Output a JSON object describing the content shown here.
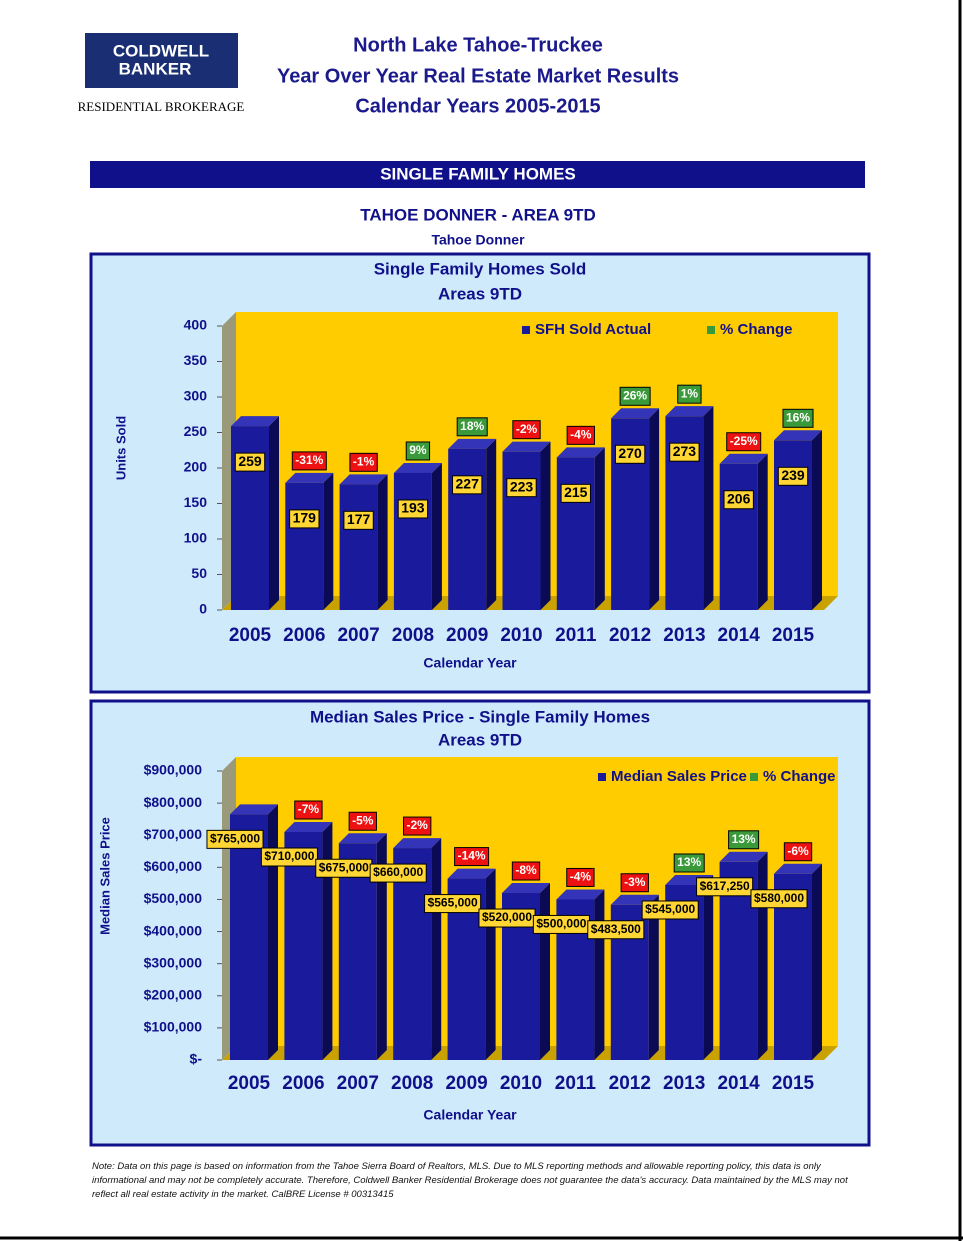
{
  "header": {
    "logo_line1": "COLDWELL",
    "logo_line2": "BANKER",
    "logo_sub": "RESIDENTIAL BROKERAGE",
    "title_lines": [
      "North Lake Tahoe-Truckee",
      "Year Over Year Real Estate Market Results",
      "Calendar Years 2005-2015"
    ]
  },
  "section": "SINGLE FAMILY HOMES",
  "area_title": "TAHOE DONNER - AREA 9TD",
  "area_subtitle": "Tahoe Donner",
  "chart_data": [
    {
      "type": "bar",
      "title": "Single Family Homes Sold",
      "subtitle": "Areas 9TD",
      "xlabel": "Calendar Year",
      "ylabel": "Units Sold",
      "categories": [
        "2005",
        "2006",
        "2007",
        "2008",
        "2009",
        "2010",
        "2011",
        "2012",
        "2013",
        "2014",
        "2015"
      ],
      "series": [
        {
          "name": "SFH Sold Actual",
          "color": "#1a1a9c",
          "values": [
            259,
            179,
            177,
            193,
            227,
            223,
            215,
            270,
            273,
            206,
            239
          ]
        },
        {
          "name": "% Change",
          "color": "#3a9a3a",
          "negative_color": "#ee1111",
          "values": [
            null,
            -31,
            -1,
            9,
            18,
            -2,
            -4,
            26,
            1,
            -25,
            16
          ],
          "value_labels": [
            null,
            "-31%",
            "-1%",
            "9%",
            "18%",
            "-2%",
            "-4%",
            "26%",
            "1%",
            "-25%",
            "16%"
          ]
        }
      ],
      "ylim": [
        0,
        400
      ],
      "yticks": [
        0,
        50,
        100,
        150,
        200,
        250,
        300,
        350,
        400
      ]
    },
    {
      "type": "bar",
      "title": "Median Sales Price - Single Family Homes",
      "subtitle": "Areas 9TD",
      "xlabel": "Calendar Year",
      "ylabel": "Median Sales Price",
      "categories": [
        "2005",
        "2006",
        "2007",
        "2008",
        "2009",
        "2010",
        "2011",
        "2012",
        "2013",
        "2014",
        "2015"
      ],
      "series": [
        {
          "name": "Median Sales Price",
          "color": "#1a1a9c",
          "values": [
            765000,
            710000,
            675000,
            660000,
            565000,
            520000,
            500000,
            483500,
            545000,
            617250,
            580000
          ],
          "value_labels": [
            "$765,000",
            "$710,000",
            "$675,000",
            "$660,000",
            "$565,000",
            "$520,000",
            "$500,000",
            "$483,500",
            "$545,000",
            "$617,250",
            "$580,000"
          ]
        },
        {
          "name": "% Change",
          "color": "#3a9a3a",
          "negative_color": "#ee1111",
          "values": [
            null,
            -7,
            -5,
            -2,
            -14,
            -8,
            -4,
            -3,
            13,
            13,
            -6
          ],
          "value_labels": [
            null,
            "-7%",
            "-5%",
            "-2%",
            "-14%",
            "-8%",
            "-4%",
            "-3%",
            "13%",
            "13%",
            "-6%"
          ]
        }
      ],
      "ylim": [
        0,
        900000
      ],
      "yticks": [
        {
          "value": 0,
          "label": "$-"
        },
        {
          "value": 100000,
          "label": "$100,000"
        },
        {
          "value": 200000,
          "label": "$200,000"
        },
        {
          "value": 300000,
          "label": "$300,000"
        },
        {
          "value": 400000,
          "label": "$400,000"
        },
        {
          "value": 500000,
          "label": "$500,000"
        },
        {
          "value": 600000,
          "label": "$600,000"
        },
        {
          "value": 700000,
          "label": "$700,000"
        },
        {
          "value": 800000,
          "label": "$800,000"
        },
        {
          "value": 900000,
          "label": "$900,000"
        }
      ]
    }
  ],
  "note": "Note: Data on this page is based on information from the Tahoe Sierra Board of Realtors, MLS.  Due to MLS reporting methods and allowable reporting policy, this data is only informational and may not be completely accurate.  Therefore, Coldwell Banker Residential Brokerage does not guarantee the data's accuracy.  Data maintained by the MLS may not reflect all real estate activity in the market.  CalBRE License # 00313415"
}
